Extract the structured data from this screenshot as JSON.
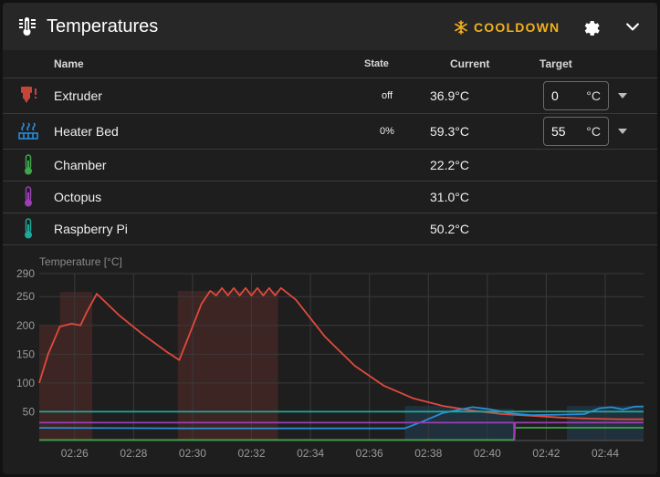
{
  "header": {
    "title": "Temperatures",
    "cooldown_label": "COOLDOWN",
    "icons": [
      "thermometer-lines-icon",
      "snowflake-icon",
      "gear-icon",
      "chevron-down-icon"
    ],
    "colors": {
      "accent": "#f2b01e"
    }
  },
  "table": {
    "columns": [
      "Name",
      "State",
      "Current",
      "Target"
    ],
    "rows": [
      {
        "name": "Extruder",
        "state": "off",
        "current": "36.9°C",
        "target": "0",
        "unit": "°C",
        "color": "#c4463a",
        "icon": "printer-nozzle-icon"
      },
      {
        "name": "Heater Bed",
        "state": "0%",
        "current": "59.3°C",
        "target": "55",
        "unit": "°C",
        "color": "#2b8cd8",
        "icon": "heated-bed-icon"
      },
      {
        "name": "Chamber",
        "current": "22.2°C",
        "color": "#3fa74a",
        "icon": "thermometer-icon"
      },
      {
        "name": "Octopus",
        "current": "31.0°C",
        "color": "#9b3fb3",
        "icon": "thermometer-icon"
      },
      {
        "name": "Raspberry Pi",
        "current": "50.2°C",
        "color": "#1fa89a",
        "icon": "thermometer-icon"
      }
    ]
  },
  "chart_data": {
    "type": "line",
    "ylabel": "Temperature [°C]",
    "ylim": [
      0,
      290
    ],
    "y_ticks": [
      50,
      100,
      150,
      200,
      250,
      290
    ],
    "x_ticks": [
      "02:26",
      "02:28",
      "02:30",
      "02:32",
      "02:34",
      "02:36",
      "02:38",
      "02:40",
      "02:42",
      "02:44"
    ],
    "x_tick_minutes": [
      26,
      28,
      30,
      32,
      34,
      36,
      38,
      40,
      42,
      44
    ],
    "xlim_minutes": [
      24.8,
      45.3
    ],
    "grid": true,
    "series": [
      {
        "color": "#e04a3c",
        "x": [
          24.8,
          25.1,
          25.5,
          25.9,
          26.2,
          26.4,
          26.75,
          27.5,
          28.3,
          29.1,
          29.55,
          29.9,
          30.3,
          30.6,
          30.8,
          31.0,
          31.2,
          31.4,
          31.6,
          31.8,
          32.0,
          32.2,
          32.4,
          32.6,
          32.8,
          33.0,
          33.5,
          34.5,
          35.5,
          36.5,
          37.5,
          38.5,
          39.5,
          40.5,
          41.5,
          42.5,
          43.5,
          44.5,
          45.3
        ],
        "y": [
          100,
          150,
          198,
          203,
          200,
          222,
          255,
          218,
          185,
          155,
          140,
          185,
          237,
          260,
          252,
          265,
          252,
          265,
          252,
          265,
          252,
          265,
          252,
          265,
          252,
          265,
          245,
          180,
          130,
          95,
          73,
          60,
          52,
          46,
          43,
          40,
          38,
          37,
          36.9
        ]
      },
      {
        "color": "#2b8cd8",
        "x": [
          24.8,
          30.0,
          37.2,
          37.8,
          38.5,
          39.5,
          40.0,
          40.8,
          41.5,
          42.5,
          43.3,
          43.8,
          44.2,
          44.6,
          45.0,
          45.3
        ],
        "y": [
          22,
          21,
          21,
          33,
          48,
          58,
          55,
          47,
          44,
          45,
          46,
          56,
          58,
          54,
          59,
          59.3
        ]
      },
      {
        "color": "#3fa74a",
        "x": [
          24.8,
          40.9,
          40.92,
          45.3
        ],
        "y": [
          1,
          1,
          22.2,
          22.2
        ]
      },
      {
        "color": "#9b3fb3",
        "x": [
          24.8,
          40.9,
          40.92,
          40.94,
          45.3
        ],
        "y": [
          31,
          31,
          2,
          31,
          31.0
        ]
      },
      {
        "color": "#1fa89a",
        "x": [
          24.8,
          45.3
        ],
        "y": [
          50,
          50.2
        ]
      }
    ],
    "target_regions": [
      {
        "color": "#e04a3c",
        "x": [
          24.8,
          25.5
        ],
        "y": 200
      },
      {
        "color": "#e04a3c",
        "x": [
          25.5,
          26.6
        ],
        "y": 258
      },
      {
        "color": "#e04a3c",
        "x": [
          29.5,
          32.9
        ],
        "y": 260
      },
      {
        "color": "#2b8cd8",
        "x": [
          37.2,
          38.8
        ],
        "y": 60
      },
      {
        "color": "#2b8cd8",
        "x": [
          38.8,
          40.9
        ],
        "y": 55
      },
      {
        "color": "#2b8cd8",
        "x": [
          42.7,
          45.3
        ],
        "y": 60
      }
    ]
  }
}
